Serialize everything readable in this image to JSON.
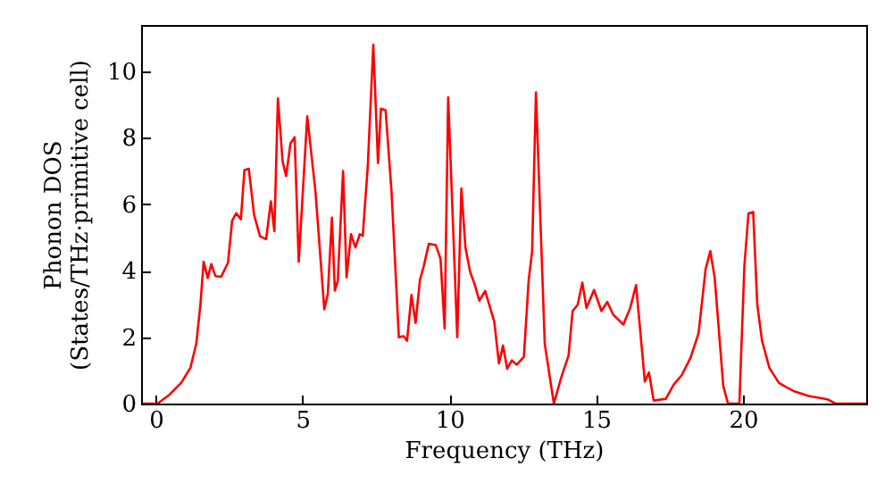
{
  "chart_data": {
    "type": "line",
    "xlabel": "Frequency (THz)",
    "ylabel": "Phonon DOS\n(States/THz·primitive cell)",
    "xlim": [
      -0.5,
      24.2
    ],
    "ylim": [
      0,
      11.4
    ],
    "xticks": [
      0,
      5,
      10,
      15,
      20
    ],
    "yticks": [
      0,
      2,
      4,
      6,
      8,
      10
    ],
    "grid": false,
    "x": [
      -0.45,
      0.06,
      0.47,
      0.87,
      1.18,
      1.38,
      1.52,
      1.63,
      1.77,
      1.89,
      2.03,
      2.23,
      2.46,
      2.6,
      2.74,
      2.9,
      3.02,
      3.17,
      3.35,
      3.55,
      3.76,
      3.92,
      4.04,
      4.16,
      4.32,
      4.44,
      4.59,
      4.73,
      4.87,
      5.16,
      5.44,
      5.74,
      5.86,
      6.0,
      6.1,
      6.2,
      6.38,
      6.5,
      6.65,
      6.8,
      6.95,
      7.05,
      7.22,
      7.41,
      7.57,
      7.67,
      7.83,
      8.03,
      8.28,
      8.44,
      8.56,
      8.71,
      8.85,
      9.0,
      9.13,
      9.3,
      9.54,
      9.7,
      9.84,
      9.96,
      10.27,
      10.41,
      10.55,
      10.71,
      10.86,
      11.02,
      11.22,
      11.53,
      11.69,
      11.83,
      11.97,
      12.13,
      12.3,
      12.54,
      12.7,
      12.82,
      12.95,
      13.25,
      13.56,
      13.82,
      14.06,
      14.2,
      14.37,
      14.53,
      14.67,
      14.93,
      15.18,
      15.38,
      15.58,
      15.93,
      16.16,
      16.36,
      16.66,
      16.8,
      16.96,
      17.37,
      17.65,
      17.92,
      18.22,
      18.49,
      18.73,
      18.89,
      19.04,
      19.33,
      19.49,
      19.88,
      20.05,
      20.19,
      20.35,
      20.49,
      20.65,
      20.9,
      21.22,
      21.46,
      21.77,
      22.24,
      22.88,
      23.15,
      24.2
    ],
    "series": [
      {
        "color": "#ff0000",
        "values": [
          0,
          0,
          0.27,
          0.63,
          1.08,
          1.8,
          2.97,
          4.27,
          3.78,
          4.2,
          3.84,
          3.82,
          4.24,
          5.5,
          5.73,
          5.55,
          7.03,
          7.07,
          5.68,
          5.04,
          4.95,
          6.09,
          5.19,
          9.19,
          7.3,
          6.85,
          7.84,
          8.02,
          4.27,
          8.65,
          6.39,
          2.84,
          3.3,
          5.6,
          3.4,
          3.7,
          7.0,
          3.8,
          5.1,
          4.7,
          5.1,
          5.05,
          7.12,
          10.81,
          7.24,
          8.88,
          8.83,
          6.39,
          2.0,
          2.03,
          1.89,
          3.27,
          2.43,
          3.73,
          4.14,
          4.81,
          4.77,
          4.36,
          2.26,
          9.22,
          2.0,
          6.48,
          4.69,
          3.96,
          3.6,
          3.1,
          3.39,
          2.47,
          1.21,
          1.75,
          1.05,
          1.3,
          1.17,
          1.41,
          3.69,
          4.59,
          9.37,
          1.8,
          0,
          0.81,
          1.44,
          2.79,
          2.97,
          3.64,
          2.88,
          3.42,
          2.79,
          3.06,
          2.68,
          2.38,
          2.88,
          3.57,
          0.66,
          0.94,
          0.09,
          0.14,
          0.58,
          0.86,
          1.39,
          2.12,
          4.05,
          4.59,
          3.78,
          0.54,
          0,
          0,
          4.14,
          5.73,
          5.77,
          2.98,
          1.9,
          1.08,
          0.63,
          0.5,
          0.36,
          0.23,
          0.13,
          0,
          0
        ]
      }
    ]
  }
}
